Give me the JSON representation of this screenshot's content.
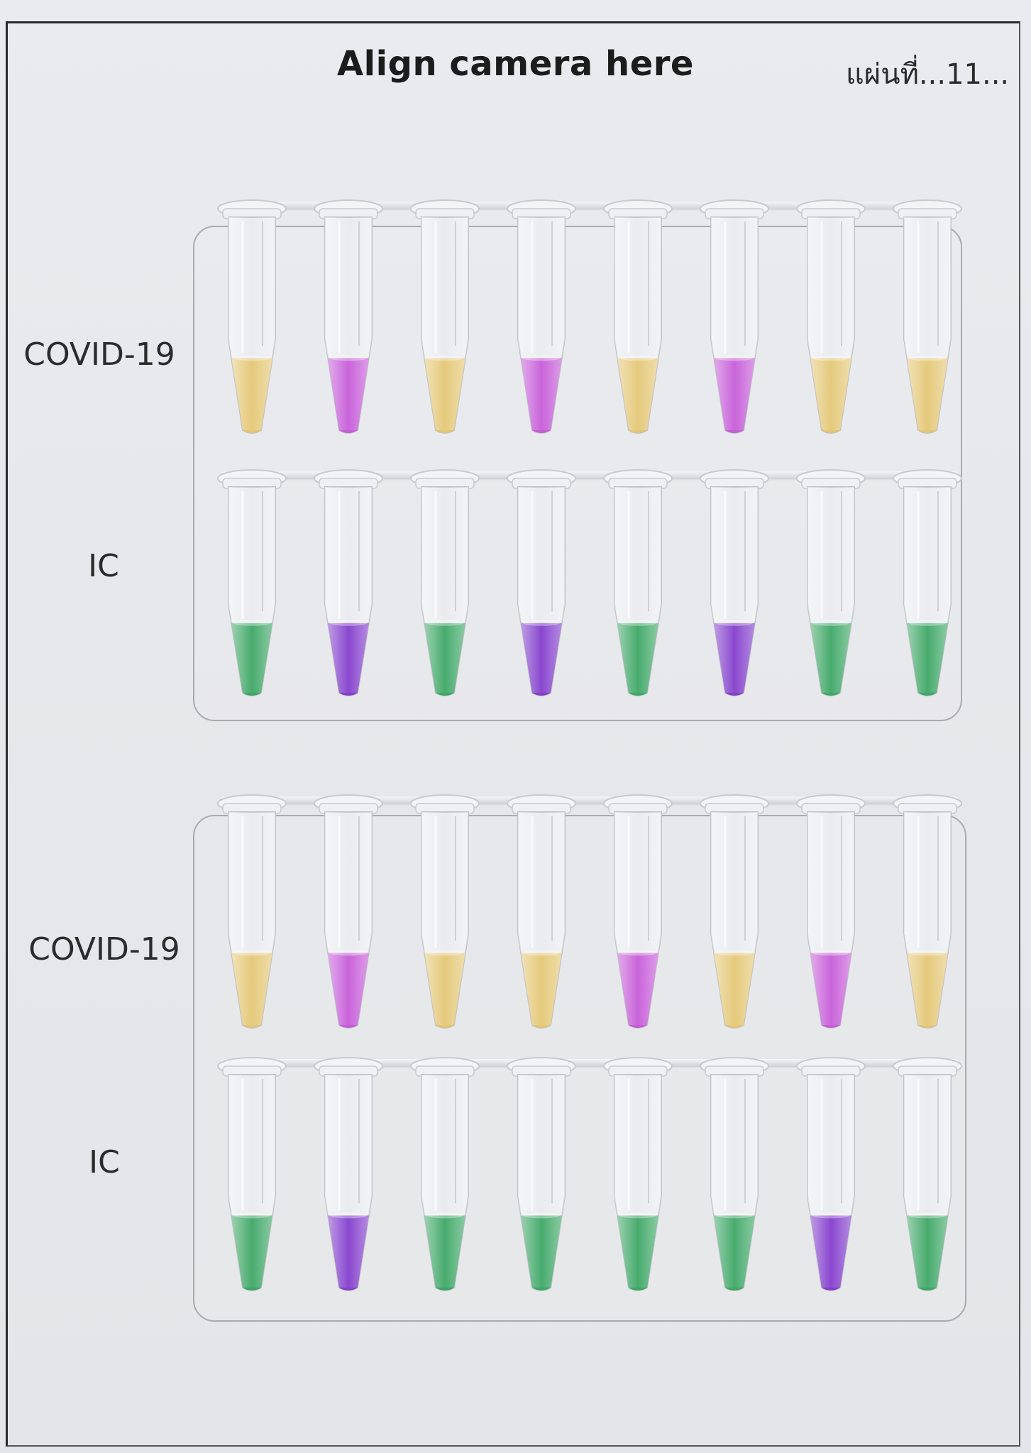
{
  "header": {
    "title": "Align camera here",
    "sheet_label": "แผ่นที่...11..."
  },
  "panels": [
    {
      "rows": [
        {
          "label": "COVID-19",
          "tube_colors": [
            "yellow",
            "pink",
            "yellow",
            "pink",
            "yellow",
            "pink",
            "yellow",
            "yellow"
          ]
        },
        {
          "label": "IC",
          "tube_colors": [
            "green",
            "violet",
            "green",
            "violet",
            "green",
            "violet",
            "green",
            "green"
          ]
        }
      ]
    },
    {
      "rows": [
        {
          "label": "COVID-19",
          "tube_colors": [
            "yellow",
            "pink",
            "yellow",
            "yellow",
            "pink",
            "yellow",
            "pink",
            "yellow"
          ]
        },
        {
          "label": "IC",
          "tube_colors": [
            "green",
            "violet",
            "green",
            "green",
            "green",
            "green",
            "violet",
            "green"
          ]
        }
      ]
    }
  ],
  "palette": {
    "yellow": "#e3c36a",
    "pink": "#c24fd6",
    "green": "#2fa15a",
    "violet": "#7a2fc9",
    "tray_border": "#a9abae",
    "frame": "#2a2a2a"
  }
}
